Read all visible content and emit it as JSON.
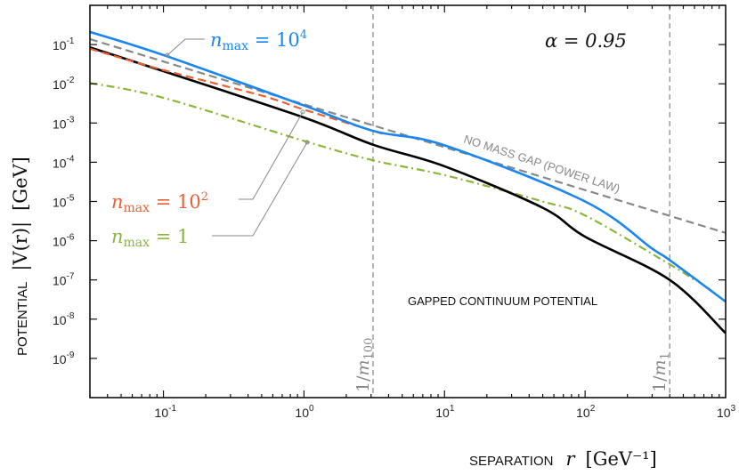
{
  "chart_data": {
    "type": "line",
    "xlabel": "SEPARATION",
    "xlabel_symbol": "r",
    "xlabel_unit": "[GeV⁻¹]",
    "ylabel": "POTENTIAL",
    "ylabel_symbol": "|V(r)|",
    "ylabel_unit": "[GeV]",
    "xscale": "log",
    "yscale": "log",
    "xlim": [
      0.03,
      1000
    ],
    "ylim": [
      1e-10,
      1
    ],
    "grid": false,
    "x_ticks": [
      {
        "value": 0.1,
        "base": "10",
        "exp": "-1"
      },
      {
        "value": 1,
        "base": "10",
        "exp": "0"
      },
      {
        "value": 10,
        "base": "10",
        "exp": "1"
      },
      {
        "value": 100,
        "base": "10",
        "exp": "2"
      },
      {
        "value": 1000,
        "base": "10",
        "exp": "3"
      }
    ],
    "y_ticks": [
      {
        "value": 0.1,
        "base": "10",
        "exp": "-1"
      },
      {
        "value": 0.01,
        "base": "10",
        "exp": "-2"
      },
      {
        "value": 0.001,
        "base": "10",
        "exp": "-3"
      },
      {
        "value": 0.0001,
        "base": "10",
        "exp": "-4"
      },
      {
        "value": 1e-05,
        "base": "10",
        "exp": "-5"
      },
      {
        "value": 1e-06,
        "base": "10",
        "exp": "-6"
      },
      {
        "value": 1e-07,
        "base": "10",
        "exp": "-7"
      },
      {
        "value": 1e-08,
        "base": "10",
        "exp": "-8"
      },
      {
        "value": 1e-09,
        "base": "10",
        "exp": "-9"
      }
    ],
    "series": [
      {
        "label": "NO MASS GAP (POWER LAW)",
        "color": "#888888",
        "style": "dashed",
        "x": [
          0.03,
          1000
        ],
        "y": [
          0.138,
          1.58e-06
        ]
      },
      {
        "name": "n_max = 1",
        "color": "#8db53c",
        "style": "dashdot",
        "x": [
          0.03,
          0.1,
          1,
          3.1,
          10,
          50,
          100,
          400,
          600
        ],
        "y": [
          0.0105,
          0.0044,
          0.00035,
          0.000112,
          4.7e-05,
          1e-05,
          4.4e-06,
          2.5e-07,
          1e-07
        ]
      },
      {
        "label": "GAPPED CONTINUUM POTENTIAL",
        "color": "#000000",
        "style": "solid",
        "x": [
          0.03,
          0.1,
          1,
          3.1,
          10,
          50,
          100,
          400,
          1000
        ],
        "y": [
          0.085,
          0.021,
          0.00138,
          0.00028,
          7.9e-05,
          6.9e-06,
          1.26e-06,
          1e-07,
          4.4e-09
        ]
      },
      {
        "name": "n_max = 10^2",
        "color": "#ec5f33",
        "style": "dashed",
        "x": [
          0.03,
          0.1,
          0.5,
          1,
          3.1,
          3.6
        ],
        "y": [
          0.078,
          0.0224,
          0.005,
          0.0022,
          0.00063,
          0.00054
        ]
      },
      {
        "name": "n_max = 10^4",
        "color": "#1a86ee",
        "style": "solid",
        "x": [
          0.03,
          0.1,
          1,
          3.1,
          10,
          100,
          300,
          400,
          1000
        ],
        "y": [
          0.21,
          0.054,
          0.0028,
          0.00063,
          0.00027,
          1e-05,
          6.3e-07,
          3.2e-07,
          2.8e-08
        ]
      }
    ],
    "vlines": [
      {
        "x": 3.1,
        "label_num": "1/",
        "label_sym": "m",
        "label_sub": "100",
        "color": "#888888"
      },
      {
        "x": 400,
        "label_num": "1/",
        "label_sym": "m",
        "label_sub": "1",
        "color": "#888888"
      }
    ],
    "annotations": {
      "alpha": "α = 0.95",
      "power_law": "NO MASS GAP (POWER LAW)",
      "gapped": "GAPPED CONTINUUM POTENTIAL",
      "legend_n4": {
        "sym": "n",
        "sub": "max",
        "eq": " = 10",
        "sup": "4"
      },
      "legend_n2": {
        "sym": "n",
        "sub": "max",
        "eq": " = 10",
        "sup": "2"
      },
      "legend_n1": {
        "sym": "n",
        "sub": "max",
        "eq": " = 1",
        "sup": ""
      }
    }
  }
}
